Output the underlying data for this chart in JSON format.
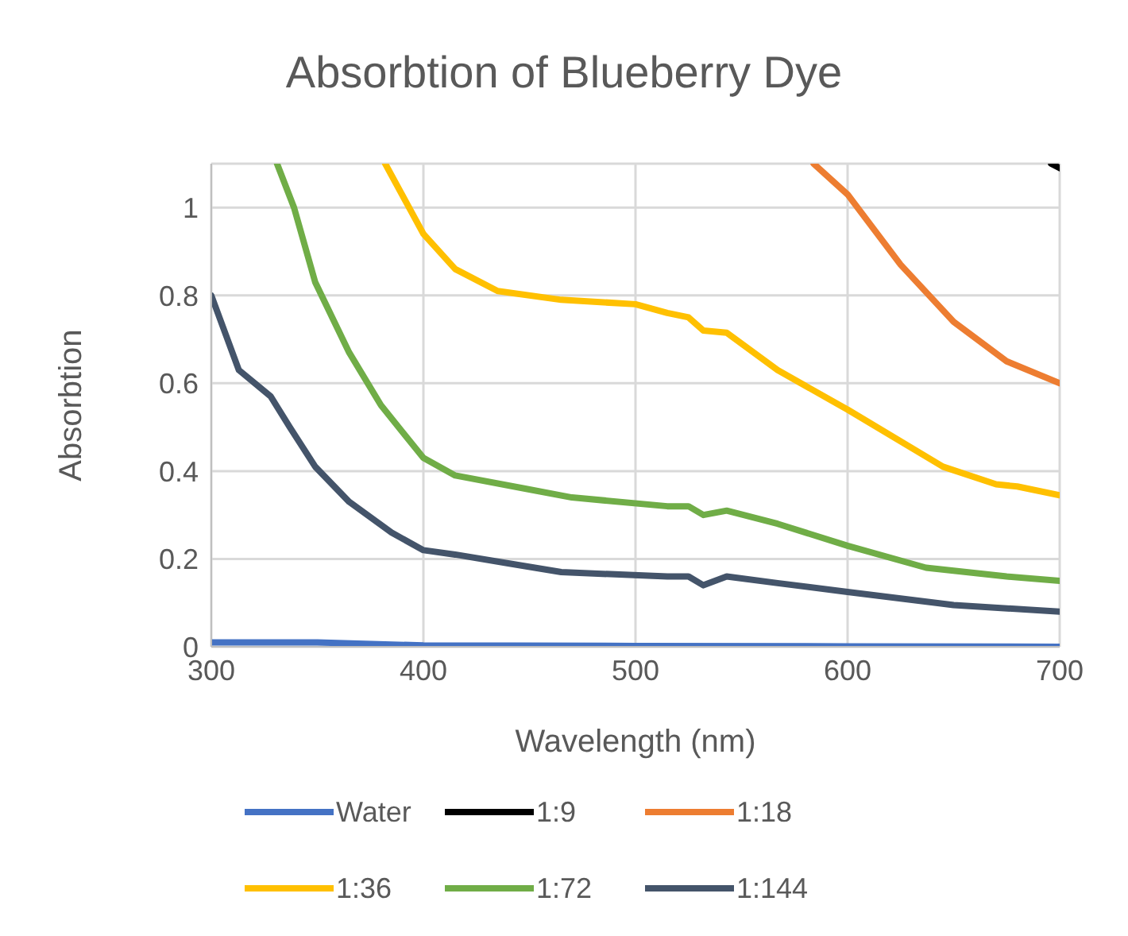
{
  "chart_data": {
    "type": "line",
    "title": "Absorbtion of Blueberry Dye",
    "xlabel": "Wavelength (nm)",
    "ylabel": "Absorbtion",
    "xlim": [
      300,
      700
    ],
    "xticks": [
      300,
      400,
      500,
      600,
      700
    ],
    "ylim": [
      0,
      1.1
    ],
    "yticks": [
      0,
      0.2,
      0.4,
      0.6,
      0.8,
      1
    ],
    "grid": true,
    "legend": "bottom",
    "marker": "none",
    "line_style": "solid",
    "series": [
      {
        "name": "Water",
        "color": "#4472c4",
        "x": [
          300,
          350,
          400,
          500,
          600,
          700
        ],
        "values": [
          0.01,
          0.01,
          0.003,
          0.002,
          0.001,
          0
        ]
      },
      {
        "name": "1:9",
        "color": "#000000",
        "x": [
          696,
          700
        ],
        "values": [
          1.1,
          1.09
        ]
      },
      {
        "name": "1:18",
        "color": "#ed7d31",
        "x": [
          584,
          600,
          625,
          650,
          675,
          700
        ],
        "values": [
          1.1,
          1.03,
          0.87,
          0.74,
          0.65,
          0.6
        ]
      },
      {
        "name": "1:36",
        "color": "#ffc000",
        "x": [
          382,
          400,
          415,
          435,
          465,
          500,
          515,
          525,
          532,
          543,
          567,
          600,
          645,
          670,
          680,
          700
        ],
        "values": [
          1.1,
          0.94,
          0.86,
          0.81,
          0.79,
          0.78,
          0.76,
          0.75,
          0.72,
          0.715,
          0.63,
          0.54,
          0.41,
          0.37,
          0.365,
          0.345
        ]
      },
      {
        "name": "1:72",
        "color": "#70ad47",
        "x": [
          331,
          339,
          349,
          365,
          380,
          400,
          415,
          448,
          470,
          515,
          525,
          532,
          543,
          567,
          600,
          637,
          675,
          700
        ],
        "values": [
          1.1,
          1.0,
          0.83,
          0.67,
          0.55,
          0.43,
          0.39,
          0.36,
          0.34,
          0.32,
          0.32,
          0.3,
          0.31,
          0.28,
          0.23,
          0.18,
          0.16,
          0.15
        ]
      },
      {
        "name": "1:144",
        "color": "#44546a",
        "x": [
          300,
          313,
          328,
          337,
          349,
          365,
          385,
          400,
          415,
          440,
          465,
          515,
          525,
          532,
          543,
          567,
          600,
          650,
          700
        ],
        "values": [
          0.8,
          0.63,
          0.57,
          0.5,
          0.41,
          0.33,
          0.26,
          0.22,
          0.21,
          0.19,
          0.17,
          0.16,
          0.16,
          0.14,
          0.16,
          0.145,
          0.125,
          0.095,
          0.08
        ]
      }
    ]
  }
}
